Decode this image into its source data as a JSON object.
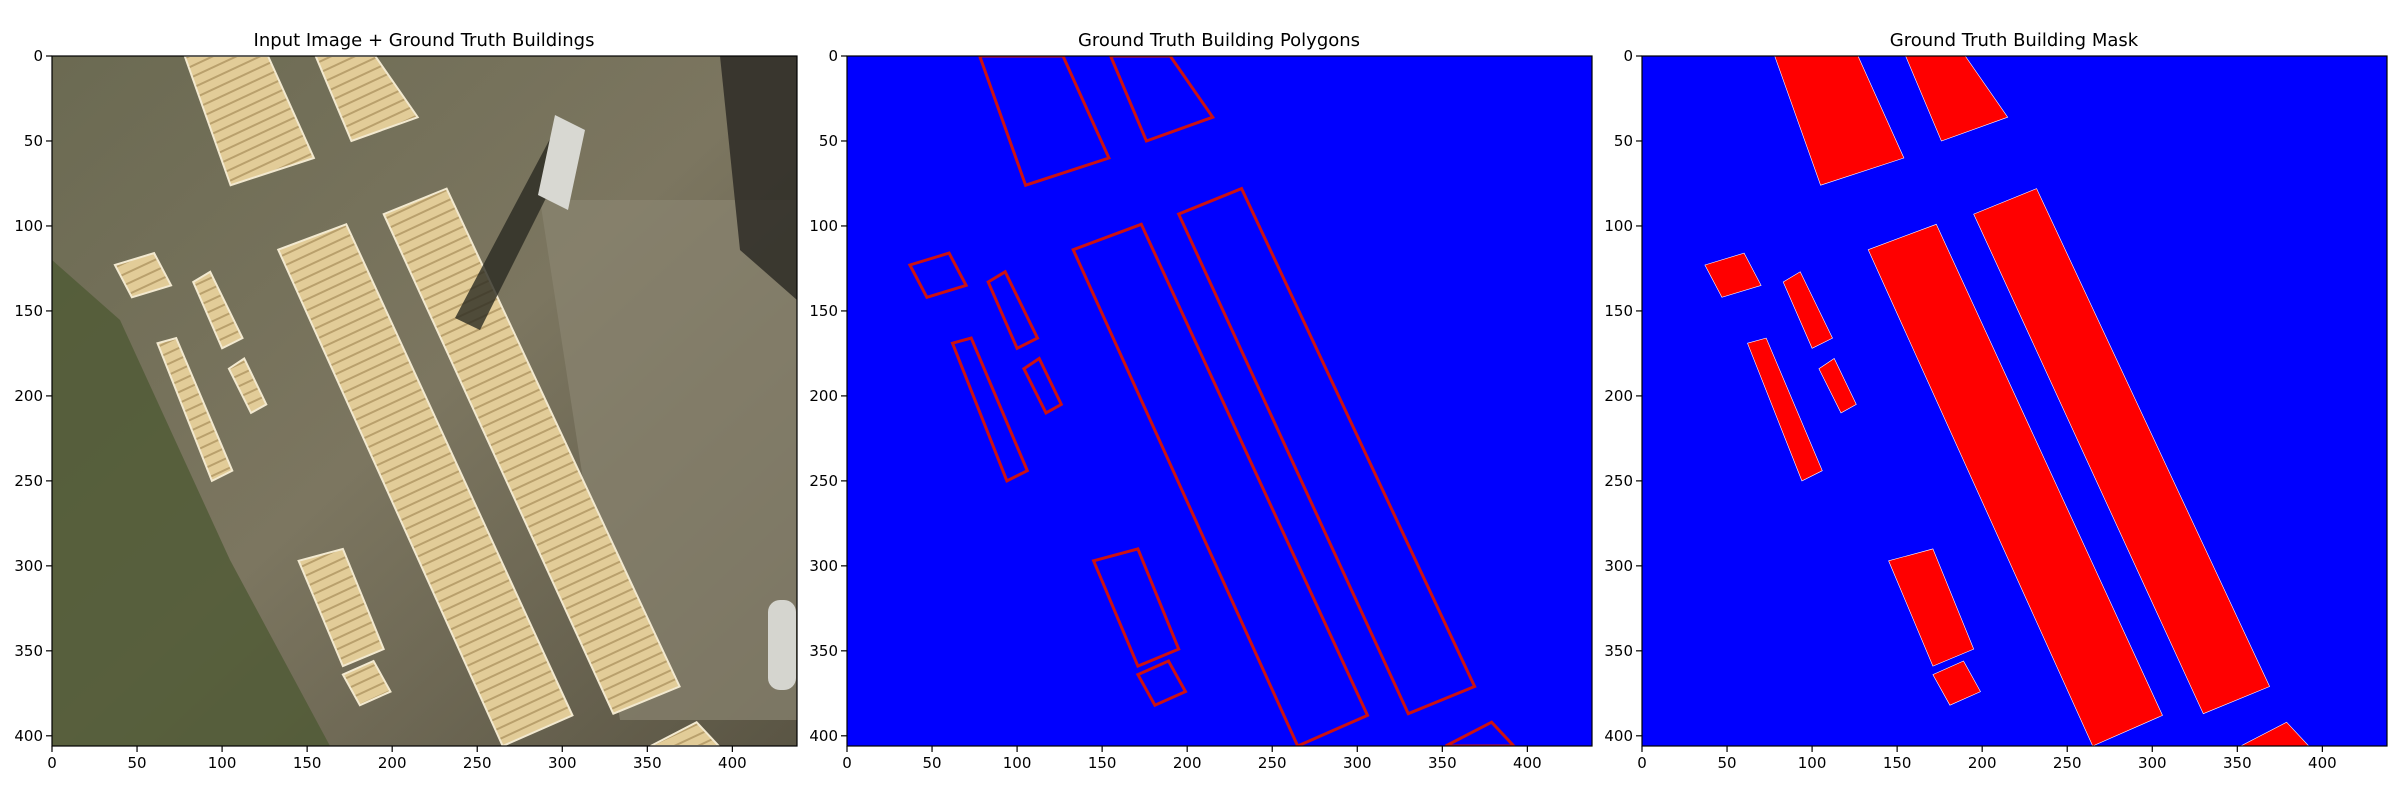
{
  "panels": [
    {
      "id": "input",
      "title": "Input Image + Ground Truth Buildings",
      "kind": "image"
    },
    {
      "id": "polygons",
      "title": "Ground Truth Building Polygons",
      "kind": "polygons"
    },
    {
      "id": "mask",
      "title": "Ground Truth Building Mask",
      "kind": "mask"
    }
  ],
  "chart_data": {
    "type": "image-panels",
    "xlim": [
      0,
      438
    ],
    "ylim": [
      406,
      0
    ],
    "x_ticks": [
      0,
      50,
      100,
      150,
      200,
      250,
      300,
      350,
      400
    ],
    "y_ticks": [
      0,
      50,
      100,
      150,
      200,
      250,
      300,
      350,
      400
    ],
    "colors": {
      "background": "#0000ff",
      "building": "#ff0000",
      "outline": "#cc1111"
    },
    "buildings": [
      [
        [
          78,
          0
        ],
        [
          127,
          0
        ],
        [
          154,
          60
        ],
        [
          105,
          76
        ]
      ],
      [
        [
          155,
          0
        ],
        [
          190,
          0
        ],
        [
          215,
          36
        ],
        [
          176,
          50
        ]
      ],
      [
        [
          232,
          78
        ],
        [
          369,
          371
        ],
        [
          330,
          387
        ],
        [
          195,
          93
        ]
      ],
      [
        [
          173,
          99
        ],
        [
          306,
          388
        ],
        [
          265,
          406
        ],
        [
          133,
          114
        ]
      ],
      [
        [
          37,
          123
        ],
        [
          60,
          116
        ],
        [
          70,
          135
        ],
        [
          47,
          142
        ]
      ],
      [
        [
          83,
          133
        ],
        [
          93,
          127
        ],
        [
          112,
          166
        ],
        [
          100,
          172
        ]
      ],
      [
        [
          62,
          169
        ],
        [
          73,
          166
        ],
        [
          106,
          244
        ],
        [
          94,
          250
        ]
      ],
      [
        [
          104,
          184
        ],
        [
          113,
          178
        ],
        [
          126,
          205
        ],
        [
          117,
          210
        ]
      ],
      [
        [
          145,
          297
        ],
        [
          171,
          290
        ],
        [
          195,
          349
        ],
        [
          171,
          359
        ]
      ],
      [
        [
          171,
          364
        ],
        [
          189,
          356
        ],
        [
          199,
          374
        ],
        [
          181,
          382
        ]
      ],
      [
        [
          352,
          406
        ],
        [
          379,
          392
        ],
        [
          392,
          406
        ]
      ]
    ]
  }
}
